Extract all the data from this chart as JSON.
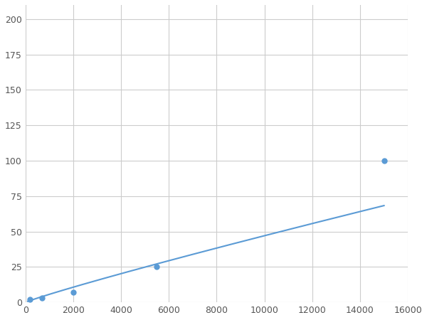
{
  "x": [
    200,
    700,
    2000,
    5500,
    15000
  ],
  "y": [
    2,
    3,
    7,
    25,
    100
  ],
  "line_color": "#5b9bd5",
  "marker_color": "#5b9bd5",
  "marker_size": 5,
  "line_width": 1.5,
  "xlim": [
    0,
    16000
  ],
  "ylim": [
    0,
    210
  ],
  "xticks": [
    0,
    2000,
    4000,
    6000,
    8000,
    10000,
    12000,
    14000,
    16000
  ],
  "yticks": [
    0,
    25,
    50,
    75,
    100,
    125,
    150,
    175,
    200
  ],
  "grid_color": "#cccccc",
  "background_color": "#ffffff",
  "fig_facecolor": "#ffffff"
}
